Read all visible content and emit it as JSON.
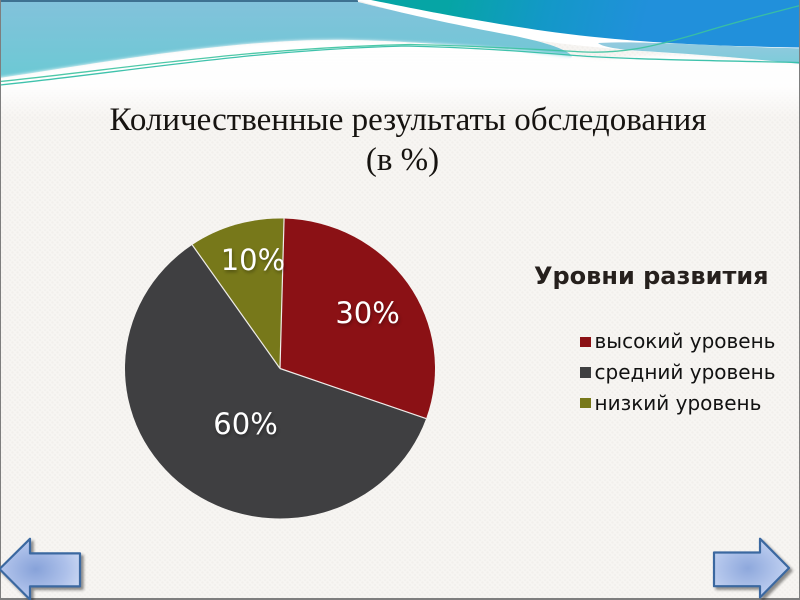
{
  "title": {
    "line1": "Количественные результаты обследования",
    "line2": "(в %)"
  },
  "chart_data": {
    "type": "pie",
    "title": "Уровни развития",
    "start_angle_deg": 1.5,
    "direction": "clockwise",
    "slices": [
      {
        "label": "высокий уровень",
        "value_pct": 30,
        "data_label": "30%",
        "color": "#8B1115"
      },
      {
        "label": "средний уровень",
        "value_pct": 60,
        "data_label": "60%",
        "color": "#3F3F41"
      },
      {
        "label": "низкий уровень",
        "value_pct": 10,
        "data_label": "10%",
        "color": "#77781A"
      }
    ],
    "legend_position": "right",
    "data_label_color": "#FFFFFF"
  },
  "nav": {
    "back_icon": "left-block-arrow",
    "next_icon": "right-block-arrow",
    "arrow_fill_center": "#8EA8DC",
    "arrow_fill_edge": "#E6ECFA",
    "arrow_border": "#3D6DA4"
  },
  "theme": {
    "banner_teal": "#00A7AE",
    "banner_blue": "#1E8ED8",
    "banner_light_blue_top": "#8FC8DF",
    "banner_light_blue_bottom": "#6FC9D6",
    "accent_line": "#2FBCA6",
    "background": "#F8F6F3"
  }
}
